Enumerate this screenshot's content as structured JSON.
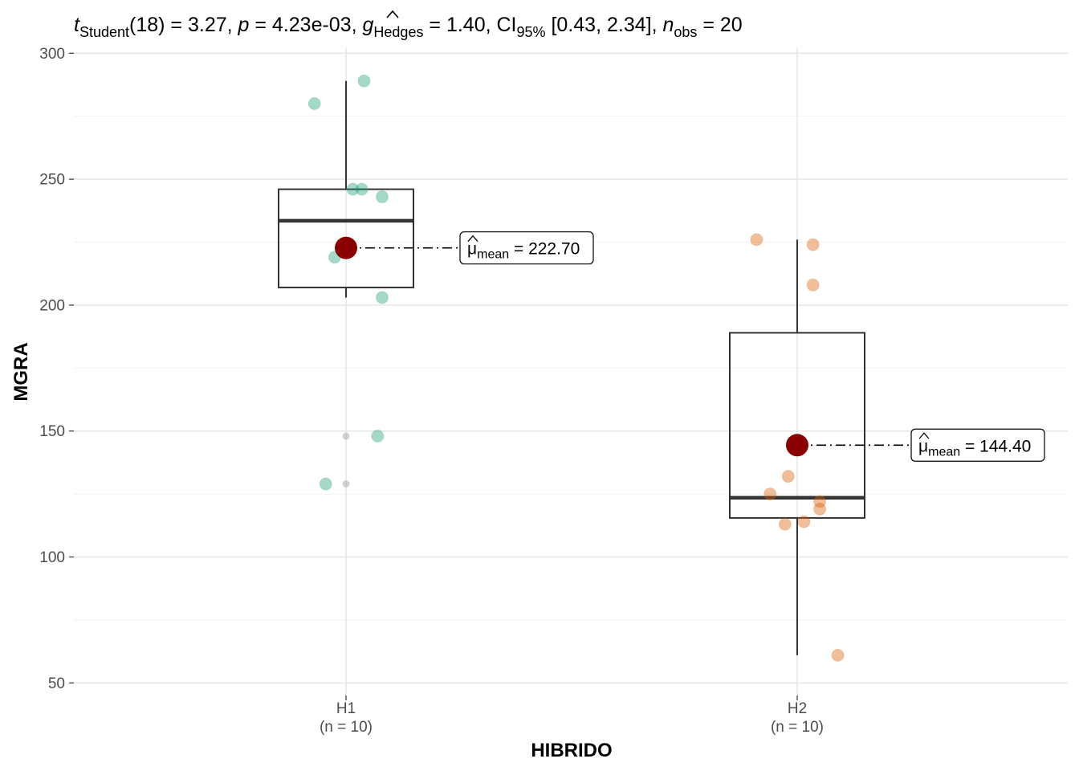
{
  "chart_data": {
    "type": "box",
    "subtitle": {
      "t_symbol": "t",
      "t_sub": "Student",
      "t_value": "(18) = 3.27, ",
      "p_symbol": "p",
      "p_value": " = 4.23e-03, ",
      "g_symbol": "g",
      "g_sub": "Hedges",
      "g_value": " = 1.40, CI",
      "ci_sub": "95%",
      "ci_value": " [0.43, 2.34], ",
      "n_symbol": "n",
      "n_sub": "obs",
      "n_value": " = 20"
    },
    "xlabel": "HIBRIDO",
    "ylabel": "MGRA",
    "ylim": [
      45,
      302
    ],
    "yticks": [
      50,
      100,
      150,
      200,
      250,
      300
    ],
    "grid": true,
    "categories": [
      "H1",
      "H2"
    ],
    "category_counts": [
      "(n = 10)",
      "(n = 10)"
    ],
    "groups": [
      {
        "name": "H1",
        "color": "#1B9E77",
        "box": {
          "q1": 207,
          "median": 233.5,
          "q3": 246,
          "whisker_low": 203,
          "whisker_high": 289
        },
        "outliers": [
          148,
          129
        ],
        "points": [
          {
            "dx": -0.07,
            "y": 280
          },
          {
            "dx": 0.04,
            "y": 289
          },
          {
            "dx": 0.015,
            "y": 246
          },
          {
            "dx": 0.035,
            "y": 246
          },
          {
            "dx": 0.08,
            "y": 243
          },
          {
            "dx": -0.025,
            "y": 219
          },
          {
            "dx": 0.08,
            "y": 203
          },
          {
            "dx": 0.07,
            "y": 148
          },
          {
            "dx": -0.045,
            "y": 129
          },
          {
            "dx": 0.0,
            "y": 222.7
          }
        ],
        "mean": 222.7,
        "mean_label_prefix": "μ",
        "mean_label_sub": "mean",
        "mean_label_value": " = 222.70"
      },
      {
        "name": "H2",
        "color": "#D95F02",
        "box": {
          "q1": 115.5,
          "median": 123.5,
          "q3": 189,
          "whisker_low": 61,
          "whisker_high": 226
        },
        "outliers": [],
        "points": [
          {
            "dx": -0.09,
            "y": 226
          },
          {
            "dx": 0.035,
            "y": 224
          },
          {
            "dx": 0.035,
            "y": 208
          },
          {
            "dx": -0.02,
            "y": 132
          },
          {
            "dx": -0.06,
            "y": 125
          },
          {
            "dx": 0.05,
            "y": 122
          },
          {
            "dx": 0.05,
            "y": 119
          },
          {
            "dx": 0.015,
            "y": 114
          },
          {
            "dx": -0.027,
            "y": 113
          },
          {
            "dx": 0.09,
            "y": 61
          }
        ],
        "mean": 144.4,
        "mean_label_prefix": "μ",
        "mean_label_sub": "mean",
        "mean_label_value": " = 144.40"
      }
    ],
    "mean_color": "#8B0000"
  }
}
